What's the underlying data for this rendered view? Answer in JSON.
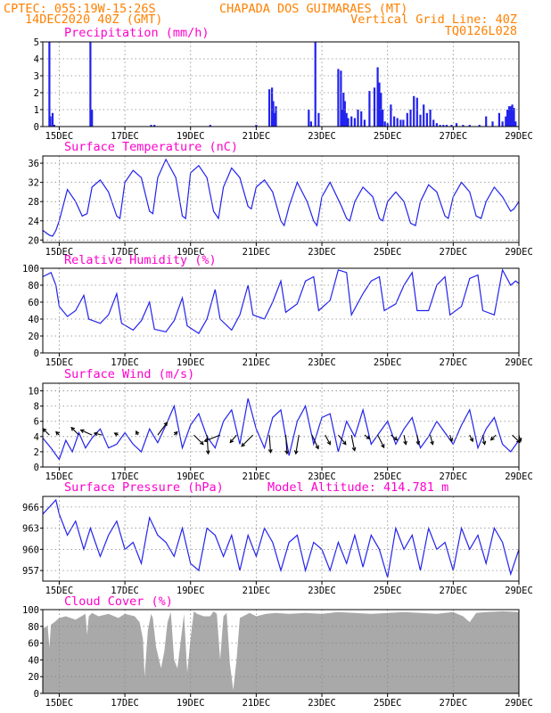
{
  "header": {
    "line1_left": "CPTEC:   055:19W-15:26S",
    "line1_right": "CHAPADA DOS GUIMARAES (MT)",
    "line2_left": "14DEC2020 40Z (GMT)",
    "line2_right": "Vertical Grid Line: 40Z",
    "line3_right": "TQ0126L028",
    "model_altitude_label": "Model Altitude: 414.781 m"
  },
  "colors": {
    "header": "#ff8000",
    "panel_title": "#ff00cc",
    "series": "#2222ee",
    "cloud": "#a9a9a9",
    "grid": "#888888",
    "axis": "#000000"
  },
  "x_axis": {
    "range_days": [
      14.5,
      29.0
    ],
    "ticks": [
      {
        "day": 15,
        "label": "15DEC"
      },
      {
        "day": 17,
        "label": "17DEC"
      },
      {
        "day": 19,
        "label": "19DEC"
      },
      {
        "day": 21,
        "label": "21DEC"
      },
      {
        "day": 23,
        "label": "23DEC"
      },
      {
        "day": 25,
        "label": "25DEC"
      },
      {
        "day": 27,
        "label": "27DEC"
      },
      {
        "day": 29,
        "label": "29DEC"
      }
    ]
  },
  "chart_data": [
    {
      "id": "precip",
      "type": "bar",
      "title": "Precipitation (mm/h)",
      "ylim": [
        0,
        5
      ],
      "yticks": [
        0,
        1,
        2,
        3,
        4,
        5
      ],
      "x": [
        14.7,
        14.73,
        14.8,
        14.85,
        15.95,
        16.0,
        17.8,
        17.9,
        19.6,
        21.0,
        21.4,
        21.48,
        21.52,
        21.56,
        21.6,
        22.6,
        22.67,
        22.8,
        22.9,
        23.5,
        23.58,
        23.62,
        23.66,
        23.7,
        23.75,
        23.8,
        23.9,
        24.0,
        24.1,
        24.2,
        24.3,
        24.45,
        24.6,
        24.7,
        24.75,
        24.8,
        24.85,
        24.92,
        25.0,
        25.1,
        25.2,
        25.3,
        25.4,
        25.48,
        25.6,
        25.7,
        25.8,
        25.9,
        26.0,
        26.1,
        26.2,
        26.3,
        26.4,
        26.5,
        26.6,
        26.7,
        26.8,
        26.95,
        27.1,
        27.3,
        27.5,
        27.8,
        28.0,
        28.2,
        28.4,
        28.5,
        28.6,
        28.65,
        28.7,
        28.75,
        28.8,
        28.85,
        28.9
      ],
      "values": [
        5.0,
        0.6,
        0.8,
        0.1,
        5.0,
        1.0,
        0.1,
        0.1,
        0.1,
        0.1,
        2.2,
        2.3,
        1.5,
        0.8,
        1.2,
        1.0,
        0.3,
        5.0,
        0.8,
        3.4,
        3.3,
        1.0,
        2.0,
        1.5,
        0.8,
        0.5,
        0.6,
        0.5,
        1.0,
        0.9,
        0.4,
        2.1,
        2.3,
        3.5,
        2.6,
        2.0,
        1.0,
        0.3,
        0.2,
        1.3,
        0.6,
        0.5,
        0.4,
        0.4,
        0.8,
        1.0,
        1.8,
        1.7,
        0.7,
        1.3,
        0.8,
        1.0,
        0.4,
        0.2,
        0.1,
        0.1,
        0.1,
        0.1,
        0.2,
        0.1,
        0.1,
        0.1,
        0.6,
        0.3,
        0.8,
        0.3,
        0.6,
        1.0,
        1.2,
        1.2,
        1.3,
        1.1,
        0.3
      ]
    },
    {
      "id": "temp",
      "type": "line",
      "title": "Surface Temperature (nC)",
      "ylim": [
        19.5,
        37.5
      ],
      "yticks": [
        20,
        24,
        28,
        32,
        36
      ],
      "x": [
        14.5,
        14.7,
        14.8,
        14.9,
        15.0,
        15.25,
        15.5,
        15.7,
        15.85,
        16.0,
        16.25,
        16.5,
        16.75,
        16.85,
        17.0,
        17.25,
        17.5,
        17.75,
        17.85,
        18.0,
        18.25,
        18.55,
        18.75,
        18.85,
        19.0,
        19.25,
        19.5,
        19.7,
        19.85,
        20.0,
        20.25,
        20.5,
        20.75,
        20.85,
        21.0,
        21.25,
        21.5,
        21.75,
        21.85,
        22.0,
        22.25,
        22.55,
        22.75,
        22.85,
        23.0,
        23.25,
        23.6,
        23.75,
        23.85,
        24.0,
        24.25,
        24.55,
        24.75,
        24.85,
        25.0,
        25.25,
        25.5,
        25.7,
        25.85,
        26.0,
        26.25,
        26.5,
        26.75,
        26.85,
        27.0,
        27.25,
        27.5,
        27.7,
        27.85,
        28.0,
        28.25,
        28.5,
        28.75,
        28.85,
        29.0
      ],
      "values": [
        22,
        21,
        20.8,
        22,
        24,
        30.5,
        28,
        25,
        25.5,
        31,
        32.5,
        30,
        25,
        24.5,
        32,
        34.5,
        33,
        26,
        25.5,
        33,
        36.8,
        33,
        25,
        24.5,
        34,
        35.5,
        33,
        26,
        24.5,
        31,
        35,
        33,
        27,
        26.5,
        31,
        32.5,
        30,
        24,
        23,
        27,
        32,
        28,
        24,
        23,
        29,
        32,
        27,
        24.5,
        24,
        28,
        31,
        29,
        24.5,
        24,
        28,
        30,
        28,
        23.5,
        23,
        28,
        31.5,
        30,
        25,
        24.5,
        29,
        32,
        30,
        25,
        24.5,
        28,
        31,
        29,
        26,
        26.5,
        28
      ]
    },
    {
      "id": "rh",
      "type": "line",
      "title": "Relative Humidity (%)",
      "ylim": [
        0,
        100
      ],
      "yticks": [
        0,
        20,
        40,
        60,
        80,
        100
      ],
      "x": [
        14.5,
        14.75,
        14.9,
        15.0,
        15.25,
        15.5,
        15.75,
        15.9,
        16.25,
        16.5,
        16.75,
        16.9,
        17.25,
        17.5,
        17.75,
        17.9,
        18.25,
        18.5,
        18.75,
        18.9,
        19.25,
        19.5,
        19.75,
        19.9,
        20.25,
        20.5,
        20.75,
        20.9,
        21.25,
        21.5,
        21.75,
        21.9,
        22.25,
        22.5,
        22.75,
        22.9,
        23.25,
        23.5,
        23.75,
        23.9,
        24.25,
        24.5,
        24.75,
        24.9,
        25.25,
        25.5,
        25.75,
        25.9,
        26.25,
        26.5,
        26.75,
        26.9,
        27.25,
        27.5,
        27.75,
        27.9,
        28.25,
        28.5,
        28.75,
        28.9,
        29.0
      ],
      "values": [
        90,
        95,
        80,
        55,
        43,
        50,
        68,
        40,
        35,
        45,
        70,
        35,
        27,
        38,
        60,
        28,
        25,
        38,
        65,
        32,
        23,
        40,
        75,
        40,
        27,
        45,
        80,
        45,
        40,
        60,
        85,
        48,
        58,
        85,
        90,
        50,
        62,
        98,
        95,
        45,
        70,
        85,
        90,
        50,
        58,
        80,
        95,
        50,
        50,
        80,
        90,
        45,
        55,
        88,
        92,
        50,
        45,
        98,
        80,
        85,
        82
      ]
    },
    {
      "id": "wind",
      "type": "line",
      "title": "Surface Wind (m/s)",
      "ylim": [
        0,
        11
      ],
      "yticks": [
        0,
        2,
        4,
        6,
        8,
        10
      ],
      "x": [
        14.5,
        14.75,
        15.0,
        15.2,
        15.4,
        15.6,
        15.8,
        16.0,
        16.25,
        16.5,
        16.75,
        17.0,
        17.25,
        17.5,
        17.75,
        18.0,
        18.25,
        18.5,
        18.75,
        19.0,
        19.25,
        19.5,
        19.75,
        20.0,
        20.25,
        20.5,
        20.75,
        21.0,
        21.25,
        21.5,
        21.75,
        22.0,
        22.25,
        22.5,
        22.75,
        23.0,
        23.25,
        23.5,
        23.75,
        24.0,
        24.25,
        24.5,
        24.75,
        25.0,
        25.25,
        25.5,
        25.75,
        26.0,
        26.25,
        26.5,
        26.75,
        27.0,
        27.25,
        27.5,
        27.75,
        28.0,
        28.25,
        28.5,
        28.75,
        29.0
      ],
      "values": [
        3.8,
        2.5,
        1.0,
        3.5,
        2.0,
        4.5,
        2.5,
        3.8,
        5.0,
        2.5,
        3.0,
        4.5,
        3.0,
        2.0,
        5.0,
        3.2,
        5.5,
        8.0,
        2.5,
        5.5,
        7.0,
        4.0,
        2.5,
        6.0,
        7.5,
        3.0,
        9.0,
        5.0,
        2.5,
        6.5,
        7.5,
        1.5,
        6.0,
        8.0,
        3.0,
        6.5,
        7.0,
        2.0,
        6.0,
        4.0,
        7.5,
        3.0,
        4.5,
        6.0,
        3.0,
        5.0,
        6.5,
        2.5,
        4.0,
        6.0,
        4.5,
        3.0,
        5.5,
        7.5,
        2.5,
        5.0,
        6.5,
        3.0,
        2.0,
        3.5
      ],
      "arrows": [
        {
          "day": 14.7,
          "u": -1,
          "v": 1
        },
        {
          "day": 15.0,
          "u": -0.5,
          "v": 0.5
        },
        {
          "day": 15.6,
          "u": -1.2,
          "v": 1.2
        },
        {
          "day": 16.0,
          "u": -1.8,
          "v": 0.8
        },
        {
          "day": 16.3,
          "u": -1.2,
          "v": 0.3
        },
        {
          "day": 16.8,
          "u": -0.6,
          "v": 0.3
        },
        {
          "day": 17.4,
          "u": -0.3,
          "v": 0.6
        },
        {
          "day": 18.0,
          "u": 1.5,
          "v": 2.0
        },
        {
          "day": 18.5,
          "u": 0.5,
          "v": 0.5
        },
        {
          "day": 19.1,
          "u": 1.5,
          "v": -1.5
        },
        {
          "day": 19.5,
          "u": 0.2,
          "v": -3.0
        },
        {
          "day": 19.9,
          "u": -2.5,
          "v": -1.0
        },
        {
          "day": 20.4,
          "u": -1.0,
          "v": -1.2
        },
        {
          "day": 20.9,
          "u": -1.8,
          "v": -1.8
        },
        {
          "day": 21.4,
          "u": 0.2,
          "v": -2.8
        },
        {
          "day": 21.9,
          "u": 0.2,
          "v": -3.0
        },
        {
          "day": 22.3,
          "u": -0.5,
          "v": -3.0
        },
        {
          "day": 22.7,
          "u": 1.0,
          "v": -2.2
        },
        {
          "day": 23.1,
          "u": 0.8,
          "v": -1.5
        },
        {
          "day": 23.5,
          "u": 1.2,
          "v": -1.5
        },
        {
          "day": 23.9,
          "u": 0.5,
          "v": -2.5
        },
        {
          "day": 24.3,
          "u": 0.8,
          "v": -0.6
        },
        {
          "day": 24.7,
          "u": 1.0,
          "v": -2.0
        },
        {
          "day": 25.1,
          "u": 1.0,
          "v": -0.8
        },
        {
          "day": 25.5,
          "u": 0.3,
          "v": -1.5
        },
        {
          "day": 25.9,
          "u": 0.2,
          "v": -1.5
        },
        {
          "day": 26.3,
          "u": 0.4,
          "v": -1.5
        },
        {
          "day": 26.9,
          "u": 0.3,
          "v": -1.0
        },
        {
          "day": 27.5,
          "u": 0.5,
          "v": -1.0
        },
        {
          "day": 27.9,
          "u": 0.3,
          "v": -1.5
        },
        {
          "day": 28.3,
          "u": -0.8,
          "v": -0.8
        },
        {
          "day": 28.8,
          "u": 1.2,
          "v": -1.2
        },
        {
          "day": 29.0,
          "u": 0.3,
          "v": -1.0
        }
      ]
    },
    {
      "id": "pressure",
      "type": "line",
      "title": "Surface Pressure (hPa)",
      "ylim": [
        955.5,
        967.5
      ],
      "yticks": [
        957,
        960,
        963,
        966
      ],
      "x": [
        14.5,
        14.9,
        15.0,
        15.25,
        15.5,
        15.75,
        15.95,
        16.1,
        16.25,
        16.5,
        16.75,
        17.0,
        17.25,
        17.5,
        17.75,
        18.0,
        18.25,
        18.5,
        18.75,
        19.0,
        19.25,
        19.5,
        19.75,
        20.0,
        20.25,
        20.5,
        20.75,
        21.0,
        21.25,
        21.5,
        21.75,
        22.0,
        22.25,
        22.5,
        22.75,
        23.0,
        23.25,
        23.5,
        23.75,
        24.0,
        24.25,
        24.5,
        24.75,
        25.0,
        25.25,
        25.5,
        25.75,
        26.0,
        26.25,
        26.5,
        26.75,
        27.0,
        27.25,
        27.5,
        27.75,
        28.0,
        28.25,
        28.5,
        28.75,
        29.0
      ],
      "values": [
        965,
        967,
        965,
        962,
        964,
        960,
        963,
        961,
        959,
        962,
        964,
        960,
        961,
        958,
        964.5,
        962,
        961,
        959,
        963,
        958,
        957,
        963,
        962,
        959,
        962,
        957,
        962,
        959,
        963,
        961,
        957,
        961,
        962,
        957,
        961,
        960,
        957,
        961,
        958,
        962,
        957.5,
        962,
        960,
        956,
        963,
        960,
        962,
        957,
        963,
        960,
        961,
        957,
        963,
        960,
        962,
        958,
        963,
        961,
        956.5,
        960
      ]
    },
    {
      "id": "cloud",
      "type": "area",
      "title": "Cloud Cover (%)",
      "ylim": [
        0,
        100
      ],
      "yticks": [
        0,
        20,
        40,
        60,
        80,
        100
      ],
      "x": [
        14.5,
        14.65,
        14.7,
        14.75,
        14.85,
        15.0,
        15.2,
        15.5,
        15.8,
        15.85,
        15.9,
        16.0,
        16.2,
        16.5,
        16.8,
        17.0,
        17.3,
        17.45,
        17.55,
        17.6,
        17.7,
        17.8,
        17.85,
        17.95,
        18.1,
        18.2,
        18.3,
        18.4,
        18.5,
        18.6,
        18.8,
        18.9,
        19.0,
        19.1,
        19.2,
        19.4,
        19.6,
        19.7,
        19.8,
        19.9,
        20.0,
        20.1,
        20.2,
        20.3,
        20.4,
        20.5,
        20.6,
        20.8,
        21.0,
        21.3,
        21.6,
        22.0,
        22.5,
        23.0,
        23.5,
        24.0,
        24.5,
        25.0,
        25.5,
        26.0,
        26.5,
        27.0,
        27.3,
        27.5,
        27.7,
        28.0,
        28.5,
        29.0
      ],
      "values": [
        78,
        80,
        55,
        82,
        85,
        90,
        92,
        88,
        95,
        70,
        92,
        96,
        92,
        95,
        90,
        95,
        92,
        85,
        65,
        20,
        75,
        95,
        90,
        55,
        30,
        50,
        85,
        97,
        40,
        30,
        95,
        25,
        65,
        98,
        95,
        92,
        92,
        98,
        95,
        40,
        92,
        96,
        35,
        4,
        40,
        90,
        92,
        96,
        92,
        95,
        96,
        95,
        96,
        95,
        97,
        96,
        95,
        96,
        97,
        96,
        95,
        97,
        92,
        85,
        96,
        97,
        98,
        97
      ]
    }
  ]
}
